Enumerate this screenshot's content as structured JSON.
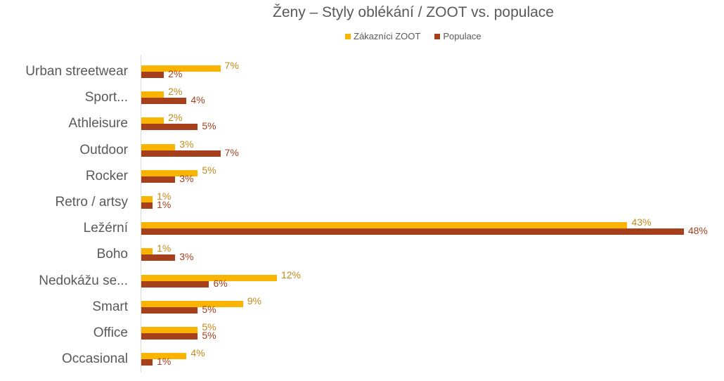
{
  "chart_data": {
    "type": "bar",
    "orientation": "horizontal",
    "title": "Ženy – Styly oblékání / ZOOT vs. populace",
    "xlabel": "",
    "ylabel": "",
    "legend_position": "top",
    "grid": false,
    "xlim": [
      0,
      48
    ],
    "categories": [
      "Urban streetwear",
      "Sport...",
      "Athleisure",
      "Outdoor",
      "Rocker",
      "Retro / artsy",
      "Ležérní",
      "Boho",
      "Nedokážu se...",
      "Smart",
      "Office",
      "Occasional"
    ],
    "series": [
      {
        "name": "Zákazníci ZOOT",
        "color": "#F8B400",
        "values": [
          7,
          2,
          2,
          3,
          5,
          1,
          43,
          1,
          12,
          9,
          5,
          4
        ]
      },
      {
        "name": "Populace",
        "color": "#A63F1C",
        "values": [
          2,
          4,
          5,
          7,
          3,
          1,
          48,
          3,
          6,
          5,
          5,
          1
        ]
      }
    ],
    "data_labels_format": "{v}%"
  },
  "title": "Ženy – Styly oblékání / ZOOT vs. populace",
  "legend": {
    "zoot": "Zákazníci ZOOT",
    "pop": "Populace"
  },
  "colors": {
    "zoot": "#F8B400",
    "pop": "#A63F1C",
    "zoot_label": "#C48A1A",
    "pop_label": "#A63F1C"
  }
}
